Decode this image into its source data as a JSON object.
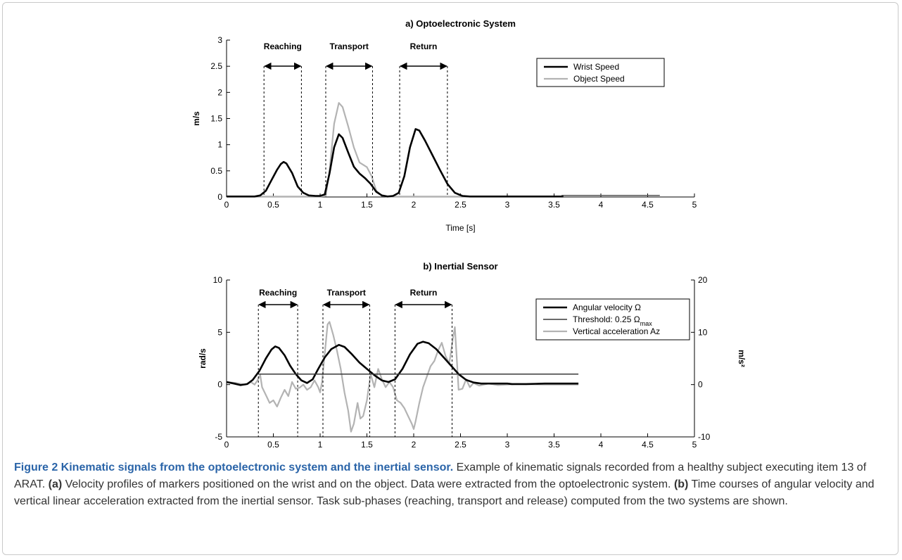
{
  "chart_data": [
    {
      "type": "line",
      "title": "a) Optoelectronic System",
      "xlabel": "Time [s]",
      "ylabel": "m/s",
      "xlim": [
        0,
        5
      ],
      "ylim": [
        0,
        3
      ],
      "xticks": [
        "0",
        "0.5",
        "1",
        "1.5",
        "2",
        "2.5",
        "3",
        "3.5",
        "4",
        "4.5",
        "5"
      ],
      "yticks": [
        "0",
        "0.5",
        "1",
        "1.5",
        "2",
        "2.5",
        "3"
      ],
      "legend_position": "top-right",
      "series": [
        {
          "name": "Wrist Speed",
          "color": "#000000",
          "points": [
            [
              0.0,
              0.01
            ],
            [
              0.3,
              0.01
            ],
            [
              0.36,
              0.03
            ],
            [
              0.42,
              0.12
            ],
            [
              0.48,
              0.32
            ],
            [
              0.54,
              0.52
            ],
            [
              0.58,
              0.63
            ],
            [
              0.61,
              0.67
            ],
            [
              0.64,
              0.64
            ],
            [
              0.7,
              0.46
            ],
            [
              0.76,
              0.2
            ],
            [
              0.82,
              0.08
            ],
            [
              0.88,
              0.03
            ],
            [
              0.95,
              0.02
            ],
            [
              1.0,
              0.02
            ],
            [
              1.05,
              0.05
            ],
            [
              1.1,
              0.45
            ],
            [
              1.15,
              0.95
            ],
            [
              1.2,
              1.2
            ],
            [
              1.24,
              1.13
            ],
            [
              1.3,
              0.85
            ],
            [
              1.36,
              0.58
            ],
            [
              1.42,
              0.45
            ],
            [
              1.48,
              0.36
            ],
            [
              1.54,
              0.25
            ],
            [
              1.6,
              0.1
            ],
            [
              1.66,
              0.03
            ],
            [
              1.72,
              0.01
            ],
            [
              1.78,
              0.02
            ],
            [
              1.84,
              0.08
            ],
            [
              1.9,
              0.4
            ],
            [
              1.96,
              0.95
            ],
            [
              2.02,
              1.3
            ],
            [
              2.06,
              1.27
            ],
            [
              2.12,
              1.08
            ],
            [
              2.2,
              0.8
            ],
            [
              2.28,
              0.52
            ],
            [
              2.36,
              0.25
            ],
            [
              2.44,
              0.08
            ],
            [
              2.52,
              0.02
            ],
            [
              2.6,
              0.01
            ],
            [
              3.6,
              0.01
            ]
          ]
        },
        {
          "name": "Object Speed",
          "color": "#b3b3b3",
          "points": [
            [
              0.0,
              0.01
            ],
            [
              1.0,
              0.01
            ],
            [
              1.06,
              0.02
            ],
            [
              1.1,
              0.5
            ],
            [
              1.15,
              1.4
            ],
            [
              1.2,
              1.8
            ],
            [
              1.24,
              1.72
            ],
            [
              1.3,
              1.35
            ],
            [
              1.36,
              0.95
            ],
            [
              1.42,
              0.66
            ],
            [
              1.5,
              0.57
            ],
            [
              1.55,
              0.4
            ],
            [
              1.6,
              0.12
            ],
            [
              1.66,
              0.02
            ],
            [
              1.72,
              0.01
            ],
            [
              3.6,
              0.01
            ]
          ]
        },
        {
          "name": "",
          "color": "#555555",
          "points": [
            [
              3.58,
              0.03
            ],
            [
              4.63,
              0.03
            ]
          ]
        }
      ],
      "phases": [
        {
          "label": "Reaching",
          "start": 0.4,
          "end": 0.8
        },
        {
          "label": "Transport",
          "start": 1.06,
          "end": 1.56
        },
        {
          "label": "Return",
          "start": 1.85,
          "end": 2.36
        }
      ]
    },
    {
      "type": "line",
      "title": "b) Inertial Sensor",
      "xlabel": "Time [s]",
      "ylabel": "rad/s",
      "y2label": "m/s²",
      "xlim": [
        0,
        5
      ],
      "ylim": [
        -5,
        10
      ],
      "y2lim": [
        -10,
        20
      ],
      "xticks": [
        "0",
        "0.5",
        "1",
        "1.5",
        "2",
        "2.5",
        "3",
        "3.5",
        "4",
        "4.5",
        "5"
      ],
      "yticks": [
        "-5",
        "0",
        "5",
        "10"
      ],
      "y2ticks": [
        "-10",
        "0",
        "10",
        "20"
      ],
      "legend_position": "top-right",
      "series": [
        {
          "name": "Angular velocity Ω",
          "color": "#000000",
          "axis": "left",
          "points": [
            [
              0.0,
              0.25
            ],
            [
              0.08,
              0.1
            ],
            [
              0.15,
              -0.05
            ],
            [
              0.22,
              0.05
            ],
            [
              0.28,
              0.45
            ],
            [
              0.35,
              1.3
            ],
            [
              0.42,
              2.5
            ],
            [
              0.48,
              3.35
            ],
            [
              0.52,
              3.65
            ],
            [
              0.56,
              3.5
            ],
            [
              0.62,
              2.8
            ],
            [
              0.68,
              1.8
            ],
            [
              0.74,
              1.0
            ],
            [
              0.8,
              0.4
            ],
            [
              0.86,
              0.15
            ],
            [
              0.92,
              0.5
            ],
            [
              0.98,
              1.5
            ],
            [
              1.05,
              2.6
            ],
            [
              1.12,
              3.4
            ],
            [
              1.2,
              3.8
            ],
            [
              1.26,
              3.6
            ],
            [
              1.34,
              2.9
            ],
            [
              1.42,
              2.1
            ],
            [
              1.5,
              1.5
            ],
            [
              1.58,
              0.9
            ],
            [
              1.66,
              0.4
            ],
            [
              1.73,
              0.25
            ],
            [
              1.8,
              0.5
            ],
            [
              1.88,
              1.5
            ],
            [
              1.96,
              2.9
            ],
            [
              2.04,
              3.9
            ],
            [
              2.1,
              4.1
            ],
            [
              2.16,
              3.95
            ],
            [
              2.24,
              3.4
            ],
            [
              2.32,
              2.6
            ],
            [
              2.4,
              1.8
            ],
            [
              2.48,
              1.0
            ],
            [
              2.56,
              0.45
            ],
            [
              2.64,
              0.2
            ],
            [
              2.72,
              0.1
            ],
            [
              3.0,
              0.1
            ],
            [
              3.05,
              0.05
            ],
            [
              3.2,
              0.05
            ],
            [
              3.4,
              0.1
            ],
            [
              3.76,
              0.1
            ]
          ]
        },
        {
          "name": "Threshold: 0.25 Ω",
          "name_sub": "max",
          "color": "#3a3a3a",
          "axis": "left",
          "points": [
            [
              0.34,
              1.0
            ],
            [
              3.76,
              1.0
            ]
          ]
        },
        {
          "name": "Vertical acceleration Az",
          "color": "#b3b3b3",
          "axis": "right",
          "points": [
            [
              0.0,
              0.5
            ],
            [
              0.1,
              0.3
            ],
            [
              0.2,
              0.0
            ],
            [
              0.26,
              0.5
            ],
            [
              0.3,
              0.0
            ],
            [
              0.33,
              0.8
            ],
            [
              0.36,
              1.8
            ],
            [
              0.38,
              -0.5
            ],
            [
              0.42,
              -2.0
            ],
            [
              0.46,
              -3.5
            ],
            [
              0.5,
              -3.0
            ],
            [
              0.54,
              -4.2
            ],
            [
              0.58,
              -2.5
            ],
            [
              0.62,
              -1.0
            ],
            [
              0.66,
              -2.2
            ],
            [
              0.7,
              0.5
            ],
            [
              0.74,
              -0.8
            ],
            [
              0.78,
              -0.6
            ],
            [
              0.82,
              0.0
            ],
            [
              0.86,
              -1.0
            ],
            [
              0.9,
              -0.5
            ],
            [
              0.94,
              0.8
            ],
            [
              0.98,
              -0.5
            ],
            [
              1.0,
              -1.5
            ],
            [
              1.02,
              0.5
            ],
            [
              1.05,
              6.0
            ],
            [
              1.08,
              11.5
            ],
            [
              1.1,
              12.0
            ],
            [
              1.14,
              9.5
            ],
            [
              1.18,
              6.5
            ],
            [
              1.22,
              3.0
            ],
            [
              1.26,
              -1.5
            ],
            [
              1.3,
              -5.0
            ],
            [
              1.33,
              -9.0
            ],
            [
              1.36,
              -7.5
            ],
            [
              1.4,
              -3.5
            ],
            [
              1.43,
              -6.5
            ],
            [
              1.46,
              -6.0
            ],
            [
              1.5,
              -3.0
            ],
            [
              1.54,
              2.0
            ],
            [
              1.58,
              -0.5
            ],
            [
              1.62,
              3.0
            ],
            [
              1.66,
              1.0
            ],
            [
              1.7,
              -0.5
            ],
            [
              1.74,
              0.5
            ],
            [
              1.78,
              -0.5
            ],
            [
              1.82,
              -3.0
            ],
            [
              1.86,
              -3.5
            ],
            [
              1.9,
              -4.5
            ],
            [
              1.94,
              -6.0
            ],
            [
              1.98,
              -7.5
            ],
            [
              2.0,
              -8.5
            ],
            [
              2.02,
              -7.0
            ],
            [
              2.06,
              -3.5
            ],
            [
              2.1,
              -0.5
            ],
            [
              2.14,
              1.5
            ],
            [
              2.18,
              3.5
            ],
            [
              2.22,
              4.5
            ],
            [
              2.26,
              6.5
            ],
            [
              2.3,
              8.0
            ],
            [
              2.34,
              5.5
            ],
            [
              2.38,
              4.0
            ],
            [
              2.42,
              9.0
            ],
            [
              2.44,
              11.0
            ],
            [
              2.46,
              5.0
            ],
            [
              2.48,
              -1.0
            ],
            [
              2.52,
              -0.8
            ],
            [
              2.56,
              1.0
            ],
            [
              2.6,
              -0.5
            ],
            [
              2.64,
              0.3
            ],
            [
              2.7,
              -0.2
            ],
            [
              2.8,
              0.2
            ],
            [
              2.9,
              -0.1
            ],
            [
              3.1,
              0.1
            ],
            [
              3.4,
              0.0
            ],
            [
              3.76,
              0.0
            ]
          ]
        }
      ],
      "phases": [
        {
          "label": "Reaching",
          "start": 0.34,
          "end": 0.76
        },
        {
          "label": "Transport",
          "start": 1.03,
          "end": 1.53
        },
        {
          "label": "Return",
          "start": 1.8,
          "end": 2.41
        }
      ]
    }
  ],
  "caption": {
    "lead": "Figure 2 Kinematic signals from the optoelectronic system and the inertial sensor.",
    "text1": " Example of kinematic signals recorded from a healthy subject executing item 13 of ARAT. ",
    "tag_a": "(a)",
    "text2": " Velocity profiles of markers positioned on the wrist and on the object. Data were extracted from the optoelectronic system. ",
    "tag_b": "(b)",
    "text3": " Time courses of angular velocity and vertical linear acceleration extracted from the inertial sensor. Task sub-phases (reaching, transport and release) computed from the two systems are shown."
  }
}
